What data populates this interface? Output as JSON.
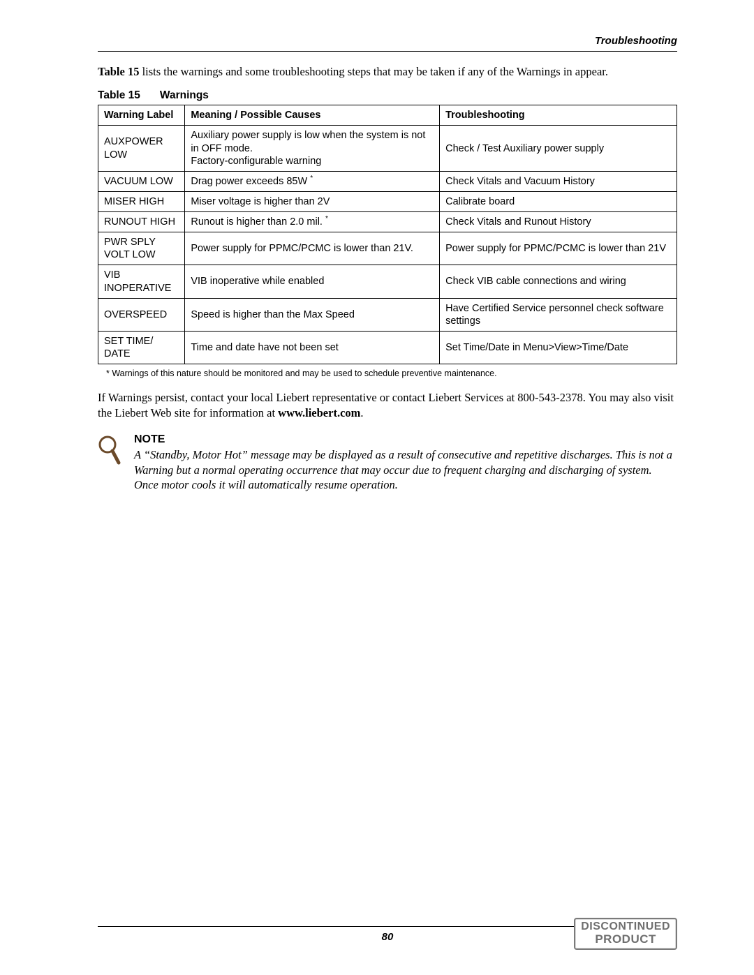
{
  "header": {
    "section": "Troubleshooting"
  },
  "intro": {
    "lead": "Table 15",
    "rest": " lists the warnings and some troubleshooting steps that may be taken if any of the Warnings in appear."
  },
  "table": {
    "caption_num": "Table 15",
    "caption_title": "Warnings",
    "columns": [
      "Warning Label",
      "Meaning / Possible Causes",
      "Troubleshooting"
    ],
    "rows": [
      {
        "label": "AUXPOWER LOW",
        "meaning": "Auxiliary power supply is low when the system is not in OFF mode.\nFactory-configurable warning",
        "trouble": "Check / Test Auxiliary power supply"
      },
      {
        "label": "VACUUM LOW",
        "meaning": "Drag power exceeds 85W",
        "meaning_sup": "*",
        "trouble": "Check Vitals and Vacuum History"
      },
      {
        "label": "MISER HIGH",
        "meaning": "Miser voltage is higher than 2V",
        "trouble": "Calibrate board"
      },
      {
        "label": "RUNOUT HIGH",
        "meaning": "Runout is higher than 2.0 mil.",
        "meaning_sup": "*",
        "trouble": "Check Vitals and Runout History"
      },
      {
        "label": "PWR SPLY VOLT LOW",
        "meaning": "Power supply for PPMC/PCMC is lower than 21V.",
        "trouble": "Power supply for PPMC/PCMC is lower than 21V"
      },
      {
        "label": "VIB INOPERATIVE",
        "meaning": "VIB inoperative while enabled",
        "trouble": "Check VIB cable connections and wiring"
      },
      {
        "label": "OVERSPEED",
        "meaning": "Speed is higher than the Max Speed",
        "trouble": "Have Certified Service personnel check software settings"
      },
      {
        "label": "SET TIME/ DATE",
        "meaning": "Time and date have not been set",
        "trouble": "Set Time/Date in Menu>View>Time/Date"
      }
    ],
    "footnote": "* Warnings of this nature should be monitored and may be used to schedule preventive maintenance."
  },
  "post": {
    "text_a": "If Warnings persist, contact your local Liebert representative or contact Liebert Services at 800-543-2378. You may also visit the Liebert Web site for information at ",
    "link": "www.liebert.com",
    "text_b": "."
  },
  "note": {
    "title": "NOTE",
    "body": "A “Standby, Motor Hot” message may be displayed as a result of consecutive and repetitive discharges. This is not a Warning but a normal operating occurrence that may occur due to frequent charging and discharging of system. Once motor cools it will automatically resume operation."
  },
  "footer": {
    "page": "80"
  },
  "stamp": {
    "line1": "DISCONTINUED",
    "line2": "PRODUCT"
  },
  "colors": {
    "stamp_border": "#7a7a7a",
    "stamp_text": "#6f6f6f"
  }
}
